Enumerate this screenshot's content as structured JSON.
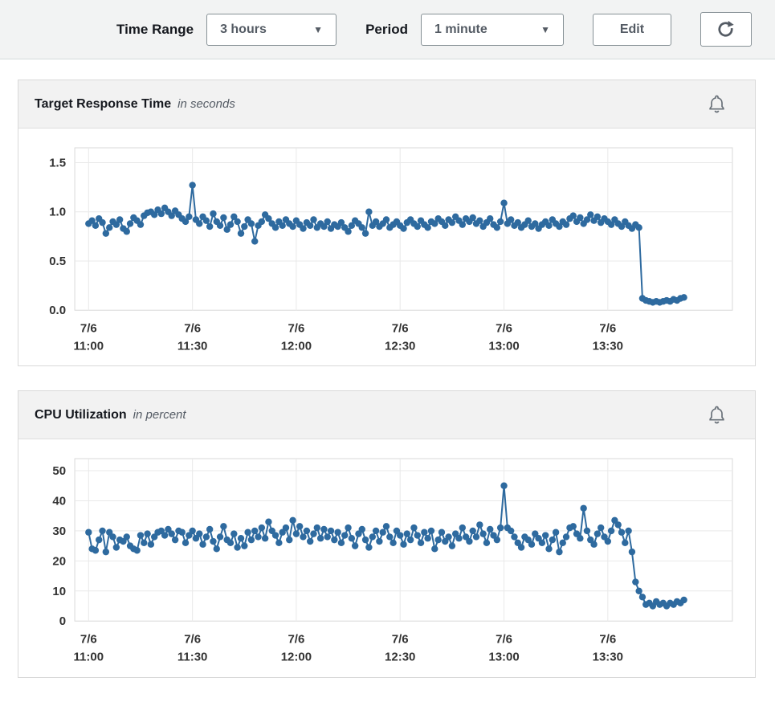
{
  "toolbar": {
    "time_range_label": "Time Range",
    "time_range_value": "3 hours",
    "period_label": "Period",
    "period_value": "1 minute",
    "edit_label": "Edit"
  },
  "icons": {
    "caret_down": "▼",
    "refresh": "refresh-circular-arrow",
    "alarm": "bell-outline"
  },
  "chart_data": [
    {
      "type": "line",
      "title": "Target Response Time",
      "subtitle": "in seconds",
      "marker": "circle",
      "color": "#2e6a9f",
      "grid": true,
      "legend": "none",
      "x_unit": "minutes after 7/6 11:00",
      "x_start": 0,
      "x_step": 1,
      "xlim": [
        -4,
        186
      ],
      "ylim": [
        0,
        1.65
      ],
      "yticks": [
        0,
        0.5,
        1.0,
        1.5
      ],
      "ytick_labels": [
        "0.0",
        "0.5",
        "1.0",
        "1.5"
      ],
      "xticks": [
        {
          "minute": 0,
          "line1": "7/6",
          "line2": "11:00"
        },
        {
          "minute": 30,
          "line1": "7/6",
          "line2": "11:30"
        },
        {
          "minute": 60,
          "line1": "7/6",
          "line2": "12:00"
        },
        {
          "minute": 90,
          "line1": "7/6",
          "line2": "12:30"
        },
        {
          "minute": 120,
          "line1": "7/6",
          "line2": "13:00"
        },
        {
          "minute": 150,
          "line1": "7/6",
          "line2": "13:30"
        }
      ],
      "values": [
        0.88,
        0.91,
        0.86,
        0.93,
        0.89,
        0.78,
        0.84,
        0.9,
        0.87,
        0.92,
        0.83,
        0.8,
        0.88,
        0.94,
        0.91,
        0.87,
        0.96,
        0.99,
        1.0,
        0.97,
        1.02,
        0.98,
        1.04,
        1.0,
        0.96,
        1.01,
        0.97,
        0.93,
        0.9,
        0.95,
        1.27,
        0.92,
        0.88,
        0.95,
        0.91,
        0.85,
        0.98,
        0.9,
        0.86,
        0.94,
        0.82,
        0.87,
        0.95,
        0.9,
        0.78,
        0.85,
        0.92,
        0.88,
        0.7,
        0.86,
        0.9,
        0.97,
        0.93,
        0.88,
        0.84,
        0.9,
        0.86,
        0.92,
        0.88,
        0.85,
        0.91,
        0.87,
        0.83,
        0.89,
        0.86,
        0.92,
        0.84,
        0.88,
        0.85,
        0.9,
        0.83,
        0.87,
        0.85,
        0.89,
        0.84,
        0.8,
        0.86,
        0.91,
        0.88,
        0.84,
        0.78,
        1.0,
        0.86,
        0.9,
        0.85,
        0.88,
        0.92,
        0.84,
        0.87,
        0.9,
        0.86,
        0.83,
        0.89,
        0.92,
        0.88,
        0.85,
        0.91,
        0.87,
        0.84,
        0.9,
        0.88,
        0.93,
        0.9,
        0.86,
        0.92,
        0.89,
        0.95,
        0.91,
        0.87,
        0.93,
        0.9,
        0.94,
        0.88,
        0.91,
        0.85,
        0.89,
        0.93,
        0.87,
        0.84,
        0.9,
        1.09,
        0.88,
        0.92,
        0.86,
        0.89,
        0.84,
        0.87,
        0.91,
        0.85,
        0.88,
        0.83,
        0.87,
        0.9,
        0.86,
        0.92,
        0.88,
        0.85,
        0.9,
        0.87,
        0.93,
        0.96,
        0.9,
        0.94,
        0.88,
        0.92,
        0.97,
        0.91,
        0.95,
        0.89,
        0.93,
        0.9,
        0.87,
        0.92,
        0.88,
        0.85,
        0.9,
        0.86,
        0.83,
        0.87,
        0.84,
        0.12,
        0.1,
        0.09,
        0.08,
        0.09,
        0.08,
        0.09,
        0.1,
        0.09,
        0.11,
        0.1,
        0.12,
        0.13
      ]
    },
    {
      "type": "line",
      "title": "CPU Utilization",
      "subtitle": "in percent",
      "marker": "circle",
      "color": "#2e6a9f",
      "grid": true,
      "legend": "none",
      "x_unit": "minutes after 7/6 11:00",
      "x_start": 0,
      "x_step": 1,
      "xlim": [
        -4,
        186
      ],
      "ylim": [
        0,
        54
      ],
      "yticks": [
        0,
        10,
        20,
        30,
        40,
        50
      ],
      "ytick_labels": [
        "0",
        "10",
        "20",
        "30",
        "40",
        "50"
      ],
      "xticks": [
        {
          "minute": 0,
          "line1": "7/6",
          "line2": "11:00"
        },
        {
          "minute": 30,
          "line1": "7/6",
          "line2": "11:30"
        },
        {
          "minute": 60,
          "line1": "7/6",
          "line2": "12:00"
        },
        {
          "minute": 90,
          "line1": "7/6",
          "line2": "12:30"
        },
        {
          "minute": 120,
          "line1": "7/6",
          "line2": "13:00"
        },
        {
          "minute": 150,
          "line1": "7/6",
          "line2": "13:30"
        }
      ],
      "values": [
        29.5,
        24,
        23.5,
        27,
        30,
        23,
        29.5,
        28,
        24.5,
        27,
        26.5,
        28,
        25,
        24,
        23.5,
        28.5,
        26,
        29,
        25.5,
        28,
        29.5,
        30,
        28.5,
        30.5,
        29,
        27,
        30,
        29.5,
        26,
        28.5,
        30,
        27.5,
        29,
        25.5,
        28,
        30.5,
        26.5,
        24,
        28,
        31.5,
        27,
        26,
        29,
        24.5,
        27.5,
        25,
        29.5,
        27,
        30,
        28,
        31,
        27.5,
        33,
        30,
        28.5,
        26,
        29.5,
        31,
        27,
        33.5,
        29,
        31.5,
        28,
        30,
        26.5,
        29,
        31,
        27.5,
        30.5,
        28,
        30,
        27,
        29.5,
        26,
        28.5,
        31,
        27.5,
        25,
        29,
        30.5,
        27,
        24.5,
        28,
        30,
        26.5,
        29.5,
        31.5,
        28,
        26,
        30,
        28.5,
        25.5,
        29,
        27,
        31,
        28.5,
        26,
        29.5,
        27.5,
        30,
        24,
        27,
        29.5,
        26.5,
        28,
        25,
        29,
        27.5,
        31,
        28,
        26.5,
        30,
        28,
        32,
        29,
        26,
        30.5,
        28.5,
        27,
        31,
        45,
        31,
        30,
        28,
        26,
        24.5,
        28,
        27,
        25.5,
        29,
        27.5,
        26,
        28.5,
        24,
        27,
        29.5,
        23,
        26,
        28,
        31,
        31.5,
        29,
        27.5,
        37.5,
        30,
        27,
        25.5,
        29,
        31,
        28,
        26.5,
        30,
        33.5,
        32,
        29.5,
        26,
        30,
        23,
        13,
        10,
        8,
        5.5,
        6,
        5,
        6.5,
        5.5,
        6,
        5,
        6,
        5.5,
        6.5,
        6,
        7
      ]
    }
  ]
}
